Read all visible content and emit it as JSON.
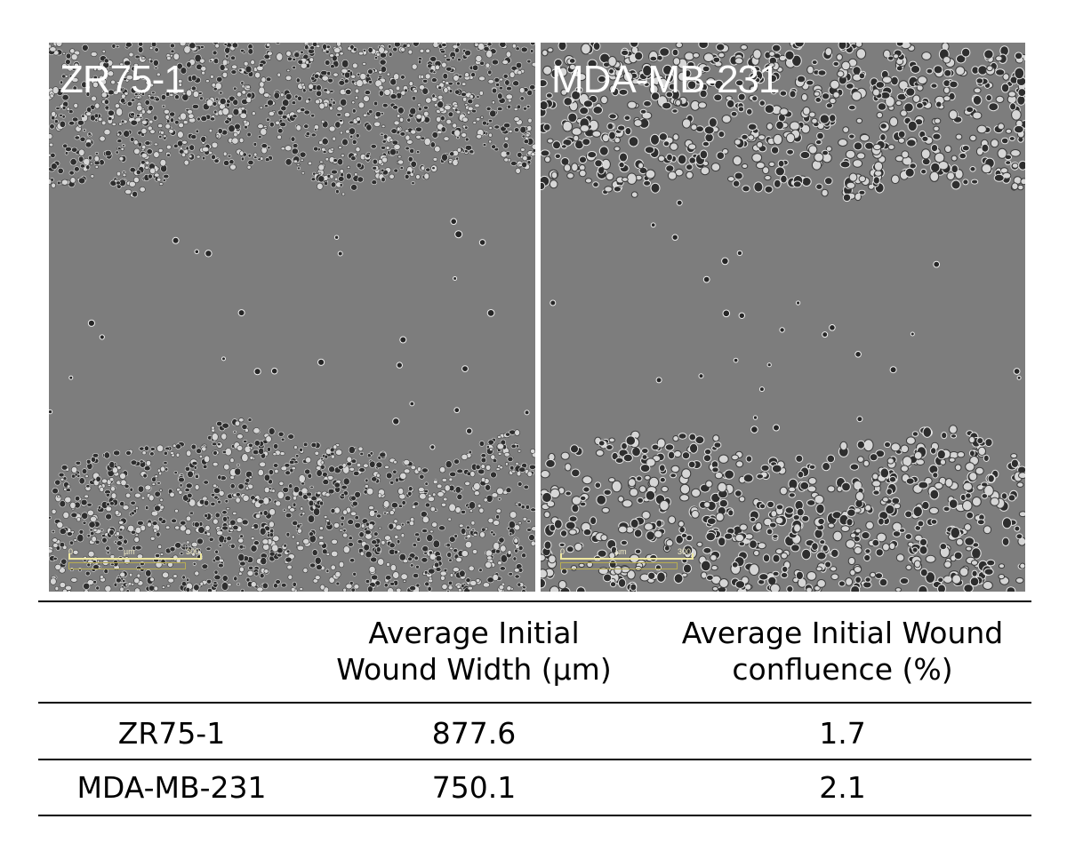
{
  "panels": [
    {
      "label": "ZR75-1",
      "scale": {
        "zero": "0",
        "unit": "µm",
        "max": "300"
      }
    },
    {
      "label": "MDA-MB-231",
      "scale": {
        "zero": "0",
        "unit": "µm",
        "max": "300"
      }
    }
  ],
  "table": {
    "headers": [
      "",
      [
        "Average Initial",
        "Wound Width (µm)"
      ],
      [
        "Average Initial Wound",
        "confluence (%)"
      ]
    ],
    "rows": [
      {
        "cell_line": "ZR75-1",
        "width": "877.6",
        "confluence": "1.7"
      },
      {
        "cell_line": "MDA-MB-231",
        "width": "750.1",
        "confluence": "2.1"
      }
    ]
  }
}
